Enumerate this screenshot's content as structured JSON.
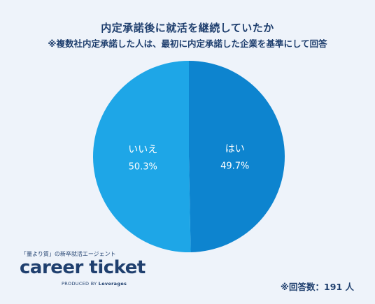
{
  "header": {
    "title": "内定承諾後に就活を継続していたか",
    "subtitle": "※複数社内定承諾した人は、最初に内定承諾した企業を基準にして回答"
  },
  "chart_data": {
    "type": "pie",
    "slices": [
      {
        "label": "はい",
        "value": 49.7,
        "value_label": "49.7%",
        "color": "#0d84cf"
      },
      {
        "label": "いいえ",
        "value": 50.3,
        "value_label": "50.3%",
        "color": "#1ea6e7"
      }
    ]
  },
  "logo": {
    "tagline": "「量より質」の新卒就活エージェント",
    "name_part1": "career",
    "name_part2": " ticket",
    "produced_by": "PRODUCED BY",
    "company": "Leverages"
  },
  "footer": {
    "respondents": "※回答数：191 人"
  }
}
